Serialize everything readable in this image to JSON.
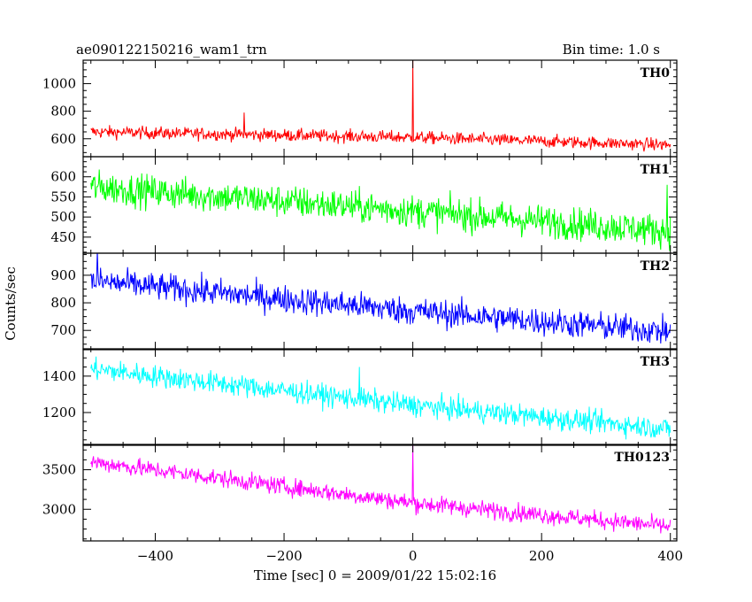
{
  "header": {
    "title": "ae090122150216_wam1_trn",
    "bin_time": "Bin time: 1.0 s"
  },
  "chart_data": {
    "type": "line",
    "xlabel": "Time [sec] 0 = 2009/01/22 15:02:16",
    "ylabel": "Counts/sec",
    "xlim": [
      -512,
      410
    ],
    "xticks": [
      -400,
      -200,
      0,
      200,
      400
    ],
    "x": {
      "start": -500,
      "end": 400,
      "step": 1.0
    },
    "panels": [
      {
        "name": "TH0",
        "color": "#ff0000",
        "ylim": [
          470,
          1170
        ],
        "yticks": [
          600,
          800,
          1000
        ],
        "trend": [
          {
            "x": -500,
            "y": 650
          },
          {
            "x": 0,
            "y": 610
          },
          {
            "x": 400,
            "y": 555
          }
        ],
        "noise_amplitude": 45,
        "spikes": [
          {
            "x": -262,
            "y": 790
          },
          {
            "x": 0,
            "y": 1170
          }
        ]
      },
      {
        "name": "TH1",
        "color": "#00ff00",
        "ylim": [
          410,
          650
        ],
        "yticks": [
          450,
          500,
          550,
          600
        ],
        "trend": [
          {
            "x": -500,
            "y": 575
          },
          {
            "x": 0,
            "y": 515
          },
          {
            "x": 400,
            "y": 465
          }
        ],
        "noise_amplitude": 40,
        "spikes": [
          {
            "x": 395,
            "y": 580
          }
        ]
      },
      {
        "name": "TH2",
        "color": "#0000ff",
        "ylim": [
          630,
          980
        ],
        "yticks": [
          700,
          800,
          900
        ],
        "trend": [
          {
            "x": -500,
            "y": 880
          },
          {
            "x": 0,
            "y": 770
          },
          {
            "x": 400,
            "y": 695
          }
        ],
        "noise_amplitude": 50,
        "spikes": [
          {
            "x": -490,
            "y": 990
          }
        ]
      },
      {
        "name": "TH3",
        "color": "#00ffff",
        "ylim": [
          1020,
          1550
        ],
        "yticks": [
          1200,
          1400
        ],
        "trend": [
          {
            "x": -500,
            "y": 1440
          },
          {
            "x": 0,
            "y": 1240
          },
          {
            "x": 400,
            "y": 1110
          }
        ],
        "noise_amplitude": 60,
        "spikes": [
          {
            "x": -83,
            "y": 1450
          }
        ]
      },
      {
        "name": "TH0123",
        "color": "#ff00ff",
        "ylim": [
          2600,
          3820
        ],
        "yticks": [
          3000,
          3500
        ],
        "trend": [
          {
            "x": -500,
            "y": 3600
          },
          {
            "x": 0,
            "y": 3080
          },
          {
            "x": 400,
            "y": 2780
          }
        ],
        "noise_amplitude": 110,
        "spikes": [
          {
            "x": 0,
            "y": 3810
          }
        ]
      }
    ]
  }
}
